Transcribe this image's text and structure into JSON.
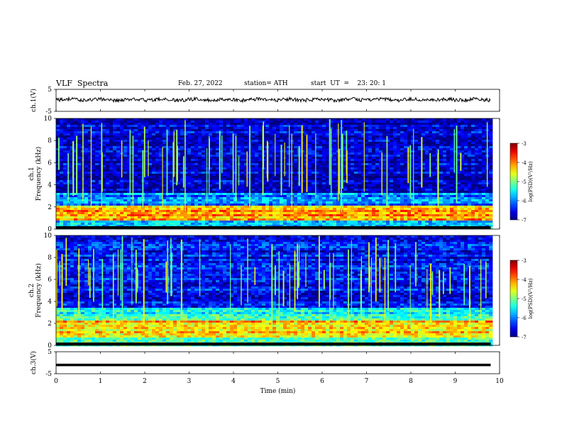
{
  "header": {
    "title": "VLF  Spectra",
    "date": "Feb. 27, 2022",
    "station": "station= ATH",
    "start_ut": "start  UT  =    23: 20: 1"
  },
  "chart_data": [
    {
      "type": "line",
      "name": "ch1-voltage",
      "ylabel": "ch.1(V)",
      "ylim": [
        -5,
        5
      ],
      "yticks": [
        "5",
        "-5"
      ],
      "x_range_min": [
        0,
        9.8
      ],
      "baseline_v": 0.3
    },
    {
      "type": "heatmap",
      "name": "ch1-spectrogram",
      "ylabel": "ch.1\nFrequency (kHz)",
      "ylim_khz": [
        0,
        10
      ],
      "yticks": [
        "0",
        "2",
        "4",
        "6",
        "8",
        "10"
      ],
      "colorbar_label": "log(PSD)(V²/Hz)",
      "colorbar_ticks": [
        "-3",
        "-4",
        "-5",
        "-6",
        "-7"
      ],
      "colorbar_range": [
        -7,
        -3
      ],
      "bands": [
        {
          "khz": [
            0,
            0.8
          ],
          "level": -5.6
        },
        {
          "khz": [
            0.8,
            2.2
          ],
          "level": -4.2
        },
        {
          "khz": [
            2.2,
            3.2
          ],
          "level": -6.0
        },
        {
          "khz": [
            3.2,
            10
          ],
          "level": -6.7
        }
      ]
    },
    {
      "type": "heatmap",
      "name": "ch2-spectrogram",
      "ylabel": "ch.2\nFrequency (kHz)",
      "ylim_khz": [
        0,
        10
      ],
      "yticks": [
        "0",
        "2",
        "4",
        "6",
        "8",
        "10"
      ],
      "colorbar_label": "log(PSD)(V²/Hz)",
      "colorbar_ticks": [
        "-3",
        "-4",
        "-5",
        "-6",
        "-7"
      ],
      "colorbar_range": [
        -7,
        -3
      ],
      "bands": [
        {
          "khz": [
            0,
            0.8
          ],
          "level": -5.2
        },
        {
          "khz": [
            0.8,
            2.2
          ],
          "level": -4.3
        },
        {
          "khz": [
            2.2,
            3.5
          ],
          "level": -5.4
        },
        {
          "khz": [
            3.5,
            10
          ],
          "level": -6.5
        }
      ]
    },
    {
      "type": "line",
      "name": "ch3-voltage",
      "ylabel": "ch.3(V)",
      "ylim": [
        -5,
        5
      ],
      "yticks": [
        "5",
        "-5"
      ],
      "x_range_min": [
        0,
        9.8
      ],
      "baseline_v": -1.0
    }
  ],
  "x_axis": {
    "label": "Time  (min)",
    "range": [
      0,
      10
    ],
    "ticks": [
      "0",
      "1",
      "2",
      "3",
      "4",
      "5",
      "6",
      "7",
      "8",
      "9",
      "10"
    ]
  }
}
